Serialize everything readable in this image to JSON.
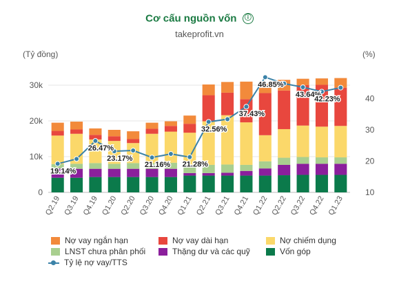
{
  "header": {
    "title": "Cơ cấu nguồn vốn",
    "info_icon": "ⓘ",
    "subtitle": "takeprofit.vn"
  },
  "chart_data": {
    "type": "bar",
    "stacked": true,
    "title": "Cơ cấu nguồn vốn",
    "ylabel_left": "(Tỷ đồng)",
    "ylabel_right": "(%)",
    "ylim_left": [
      0,
      35000
    ],
    "ylim_right": [
      10,
      50
    ],
    "yticks_left": [
      {
        "v": 0,
        "label": "0"
      },
      {
        "v": 10000,
        "label": "10k"
      },
      {
        "v": 20000,
        "label": "20k"
      },
      {
        "v": 30000,
        "label": "30k"
      }
    ],
    "yticks_right": [
      {
        "v": 10,
        "label": "10"
      },
      {
        "v": 20,
        "label": "20"
      },
      {
        "v": 30,
        "label": "30"
      },
      {
        "v": 40,
        "label": "40"
      }
    ],
    "grid": true,
    "legend_position": "bottom",
    "categories": [
      "Q2.19",
      "Q3.19",
      "Q4.19",
      "Q1.20",
      "Q2.20",
      "Q3.20",
      "Q4.20",
      "Q1.21",
      "Q2.21",
      "Q3.21",
      "Q4.21",
      "Q1.22",
      "Q2.22",
      "Q3.22",
      "Q4.22",
      "Q1.23"
    ],
    "series": [
      {
        "name": "Vốn góp",
        "color": "#0b7a4b",
        "values": [
          4100,
          4100,
          4300,
          4300,
          4300,
          4300,
          4300,
          4700,
          4700,
          4700,
          4700,
          4700,
          4800,
          4900,
          4900,
          4900
        ]
      },
      {
        "name": "Thặng dư và các quỹ",
        "color": "#8b1f9c",
        "values": [
          2600,
          2500,
          2300,
          2300,
          2300,
          2300,
          2300,
          700,
          700,
          800,
          1300,
          2000,
          2900,
          3100,
          3100,
          3100
        ]
      },
      {
        "name": "LNST chưa phân phối",
        "color": "#a9cf8f",
        "values": [
          1200,
          1400,
          1600,
          1400,
          1600,
          1600,
          1700,
          2300,
          2300,
          2300,
          1700,
          2000,
          2000,
          1900,
          1800,
          1800
        ]
      },
      {
        "name": "Nợ chiếm dụng",
        "color": "#fbd86a",
        "values": [
          8000,
          8400,
          6600,
          6400,
          5600,
          8200,
          8700,
          9000,
          12200,
          13800,
          11900,
          7300,
          8000,
          8800,
          8600,
          8800
        ]
      },
      {
        "name": "Nợ vay dài hạn",
        "color": "#e8473e",
        "values": [
          1300,
          1200,
          1300,
          1300,
          1100,
          1400,
          1600,
          2500,
          7300,
          6300,
          6500,
          11800,
          10800,
          11300,
          11700,
          10700
        ]
      },
      {
        "name": "Nợ vay ngắn hạn",
        "color": "#f28a3b",
        "values": [
          2300,
          2200,
          1800,
          1800,
          2200,
          1700,
          1300,
          2300,
          3000,
          3000,
          4900,
          2600,
          3000,
          1800,
          1800,
          2700
        ]
      }
    ],
    "line_series": {
      "name": "Tỷ lệ nợ vay/TTS",
      "color": "#3b82a8",
      "axis": "right",
      "values": [
        19.14,
        20.7,
        26.47,
        23.17,
        23.4,
        21.16,
        22.3,
        21.28,
        32.56,
        33.4,
        37.43,
        46.85,
        44.8,
        43.64,
        42.23,
        43.5
      ],
      "data_labels": [
        {
          "index": 0,
          "label": "19.14%"
        },
        {
          "index": 2,
          "label": "26.47%"
        },
        {
          "index": 3,
          "label": "23.17%"
        },
        {
          "index": 5,
          "label": "21.16%"
        },
        {
          "index": 7,
          "label": "21.28%"
        },
        {
          "index": 8,
          "label": "32.56%"
        },
        {
          "index": 10,
          "label": "37.43%"
        },
        {
          "index": 11,
          "label": "46.85%"
        },
        {
          "index": 13,
          "label": "43.64%"
        },
        {
          "index": 14,
          "label": "42.23%"
        }
      ]
    }
  }
}
